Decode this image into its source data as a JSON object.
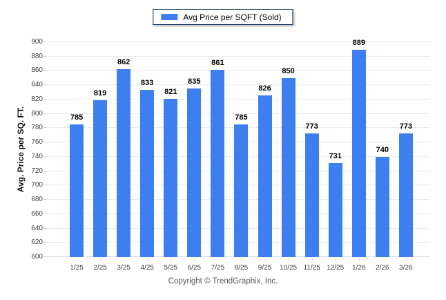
{
  "legend": {
    "label": "Avg Price per SQFT (Sold)"
  },
  "y_axis": {
    "title": "Avg. Price per SQ. FT."
  },
  "footer": {
    "text": "Copyright © TrendGraphix, Inc."
  },
  "colors": {
    "bar": "#3e7fef",
    "legend_border": "#1c3a5e",
    "gridline": "#e9e9e9",
    "axis_line": "#cfcfcf",
    "tick_label": "#404040",
    "value_label": "#000000",
    "footer_text": "#595959",
    "background": "#ffffff"
  },
  "chart_data": {
    "type": "bar",
    "title": "Avg Price per SQFT (Sold)",
    "series_name": "Avg Price per SQFT (Sold)",
    "categories": [
      "1/25",
      "2/25",
      "3/25",
      "4/25",
      "5/25",
      "6/25",
      "7/25",
      "8/25",
      "9/25",
      "10/25",
      "11/25",
      "12/25",
      "1/26",
      "2/26",
      "3/26"
    ],
    "values": [
      785,
      819,
      862,
      833,
      821,
      835,
      861,
      785,
      826,
      850,
      773,
      731,
      889,
      740,
      773
    ],
    "xlabel": "",
    "ylabel": "Avg. Price per SQ. FT.",
    "ylim": [
      600,
      900
    ],
    "ytick_step": 20,
    "grid": true,
    "legend_position": "top-center",
    "value_labels": true
  }
}
